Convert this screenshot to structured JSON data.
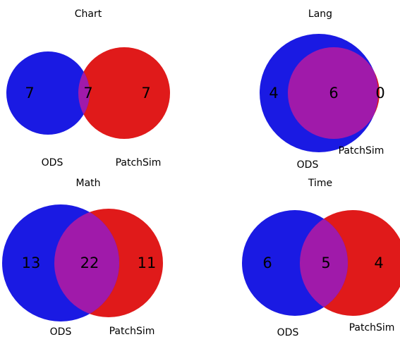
{
  "chart_data": [
    {
      "type": "venn",
      "title": "Chart",
      "sets": [
        "ODS",
        "PatchSim"
      ],
      "counts": {
        "only_a": 7,
        "both": 7,
        "only_b": 7
      },
      "counts_text": {
        "only_a": "7",
        "both": "7",
        "only_b": "7"
      }
    },
    {
      "type": "venn",
      "title": "Lang",
      "sets": [
        "ODS",
        "PatchSim"
      ],
      "counts": {
        "only_a": 4,
        "both": 6,
        "only_b": 0
      },
      "counts_text": {
        "only_a": "4",
        "both": "6",
        "only_b": "0"
      }
    },
    {
      "type": "venn",
      "title": "Math",
      "sets": [
        "ODS",
        "PatchSim"
      ],
      "counts": {
        "only_a": 13,
        "both": 22,
        "only_b": 11
      },
      "counts_text": {
        "only_a": "13",
        "both": "22",
        "only_b": "11"
      }
    },
    {
      "type": "venn",
      "title": "Time",
      "sets": [
        "ODS",
        "PatchSim"
      ],
      "counts": {
        "only_a": 6,
        "both": 5,
        "only_b": 4
      },
      "counts_text": {
        "only_a": "6",
        "both": "5",
        "only_b": "4"
      }
    }
  ],
  "colors": {
    "set_a": "#1a1ae3",
    "set_b": "#e01a1a",
    "overlap": "#a01aaa"
  }
}
